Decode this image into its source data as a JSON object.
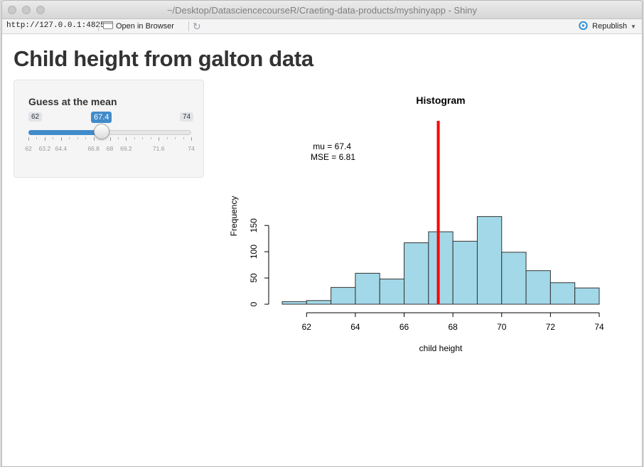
{
  "window": {
    "title": "~/Desktop/DatasciencecourseR/Craeting-data-products/myshinyapp - Shiny"
  },
  "toolbar": {
    "url": "http://127.0.0.1:4825",
    "open_browser_label": "Open in Browser",
    "republish_label": "Republish"
  },
  "page": {
    "title": "Child height from galton data"
  },
  "slider": {
    "label": "Guess at the mean",
    "min": 62,
    "max": 74,
    "value": 67.4,
    "min_label": "62",
    "max_label": "74",
    "value_label": "67.4",
    "tick_labels": [
      "62",
      "63.2",
      "64.4",
      "66.8",
      "68",
      "69.2",
      "71.6",
      "74"
    ],
    "tick_values": [
      62,
      63.2,
      64.4,
      66.8,
      68,
      69.2,
      71.6,
      74
    ],
    "accent_color": "#428bca"
  },
  "chart_data": {
    "type": "bar",
    "title": "Histogram",
    "xlabel": "child height",
    "ylabel": "Frequency",
    "bin_edges": [
      61,
      62,
      63,
      64,
      65,
      66,
      67,
      68,
      69,
      70,
      71,
      72,
      73,
      74
    ],
    "values": [
      5,
      7,
      32,
      59,
      48,
      117,
      138,
      120,
      167,
      99,
      64,
      41,
      31
    ],
    "x_ticks": [
      62,
      64,
      66,
      68,
      70,
      72,
      74
    ],
    "y_ticks": [
      0,
      50,
      100,
      150
    ],
    "xlim": [
      61,
      74
    ],
    "ylim": [
      0,
      175
    ],
    "bar_color": "#a2d8e8",
    "mean_line": {
      "x": 67.4,
      "color": "#ff0000"
    },
    "annotation_mu": "mu =  67.4",
    "annotation_mse": "MSE =  6.81"
  }
}
